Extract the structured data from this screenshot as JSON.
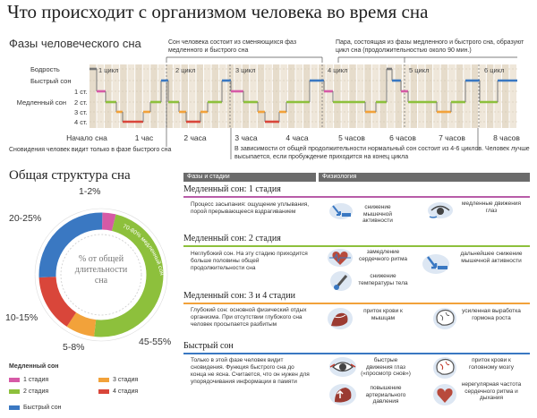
{
  "title": "Что происходит с организмом человека во время сна",
  "hypnogram": {
    "title": "Фазы человеческого сна",
    "note_cycle": "Сон человека состоит из сменяющихся фаз медленного и быстрого сна",
    "note_pair": "Пара, состоящая из фазы медленного и быстрого сна, образуют цикл сна (продолжительностью около 90 мин.)",
    "stages": [
      "Бодрость",
      "Быстрый сон",
      "1 ст.",
      "2 ст.",
      "3 ст.",
      "4 ст."
    ],
    "slow_sleep_label": "Медленный сон",
    "cycles": [
      "1 цикл",
      "2 цикл",
      "3 цикл",
      "4 цикл",
      "5 цикл",
      "6 цикл"
    ],
    "hours": [
      "Начало сна",
      "1 час",
      "2 часа",
      "3 часа",
      "4 часа",
      "5 часов",
      "6 часов",
      "7 часов",
      "8 часов"
    ],
    "note_dreams": "Сновидения человек видит только в фазе быстрого сна",
    "note_total": "В зависимости от общей продолжительности нормальный сон состоит из 4-6 циклов. Человек лучше высыпается, если пробуждение приходится на конец цикла"
  },
  "structure": {
    "title": "Общая структура сна",
    "center_text": "% от общей длительности сна",
    "segment_texts": {
      "rem": "20-25% быстрый сон",
      "slow": "70-80% медленный сон"
    },
    "percent_labels": [
      "1-2%",
      "20-25%",
      "10-15%",
      "5-8%",
      "45-55%"
    ],
    "legend_title": "Медленный сон",
    "legend": [
      {
        "label": "1 стадия",
        "color": "#d65aa6"
      },
      {
        "label": "3 стадия",
        "color": "#f2a23a"
      },
      {
        "label": "2 стадия",
        "color": "#8dc03c"
      },
      {
        "label": "4 стадия",
        "color": "#d9463a"
      },
      {
        "label": "Быстрый сон",
        "color": "#3a78c2"
      }
    ]
  },
  "table": {
    "header_phases": "Фазы и стадии",
    "header_physiology": "Физиология",
    "rows": [
      {
        "title": "Медленный сон: 1 стадия",
        "rule_color": "#b85ca8",
        "desc": "Процесс засыпания: ощущение уплывания, порой прерывающееся вздрагиванием",
        "effects": [
          "снижение мышечной активности",
          "медленные движения глаз"
        ]
      },
      {
        "title": "Медленный сон: 2 стадия",
        "rule_color": "#8dc03c",
        "desc": "Неглубокий сон. На эту стадию приходится больше половины общей продолжительности сна",
        "effects": [
          "замедление сердечного ритма",
          "снижение температуры тела",
          "дальнейшее снижение мышечной активности"
        ]
      },
      {
        "title": "Медленный сон: 3 и 4 стадии",
        "rule_color": "#f2a23a",
        "desc": "Глубокий сон: основной физический отдых организма. При отсутствии глубокого сна человек просыпается разбитым",
        "effects": [
          "приток крови к мышцам",
          "усиленная выработка гормона роста"
        ]
      },
      {
        "title": "Быстрый сон",
        "rule_color": "#3a78c2",
        "desc": "Только в этой фазе человек видит сновидения. Функция быстрого сна до конца не ясна. Считается, что он нужен для упорядочивания информации в памяти",
        "effects": [
          "быстрые движения глаз («просмотр снов»)",
          "повышение артериального давления",
          "приток крови к головному мозгу",
          "нерегулярная частота сердечного ритма и дыхания"
        ]
      }
    ]
  }
}
